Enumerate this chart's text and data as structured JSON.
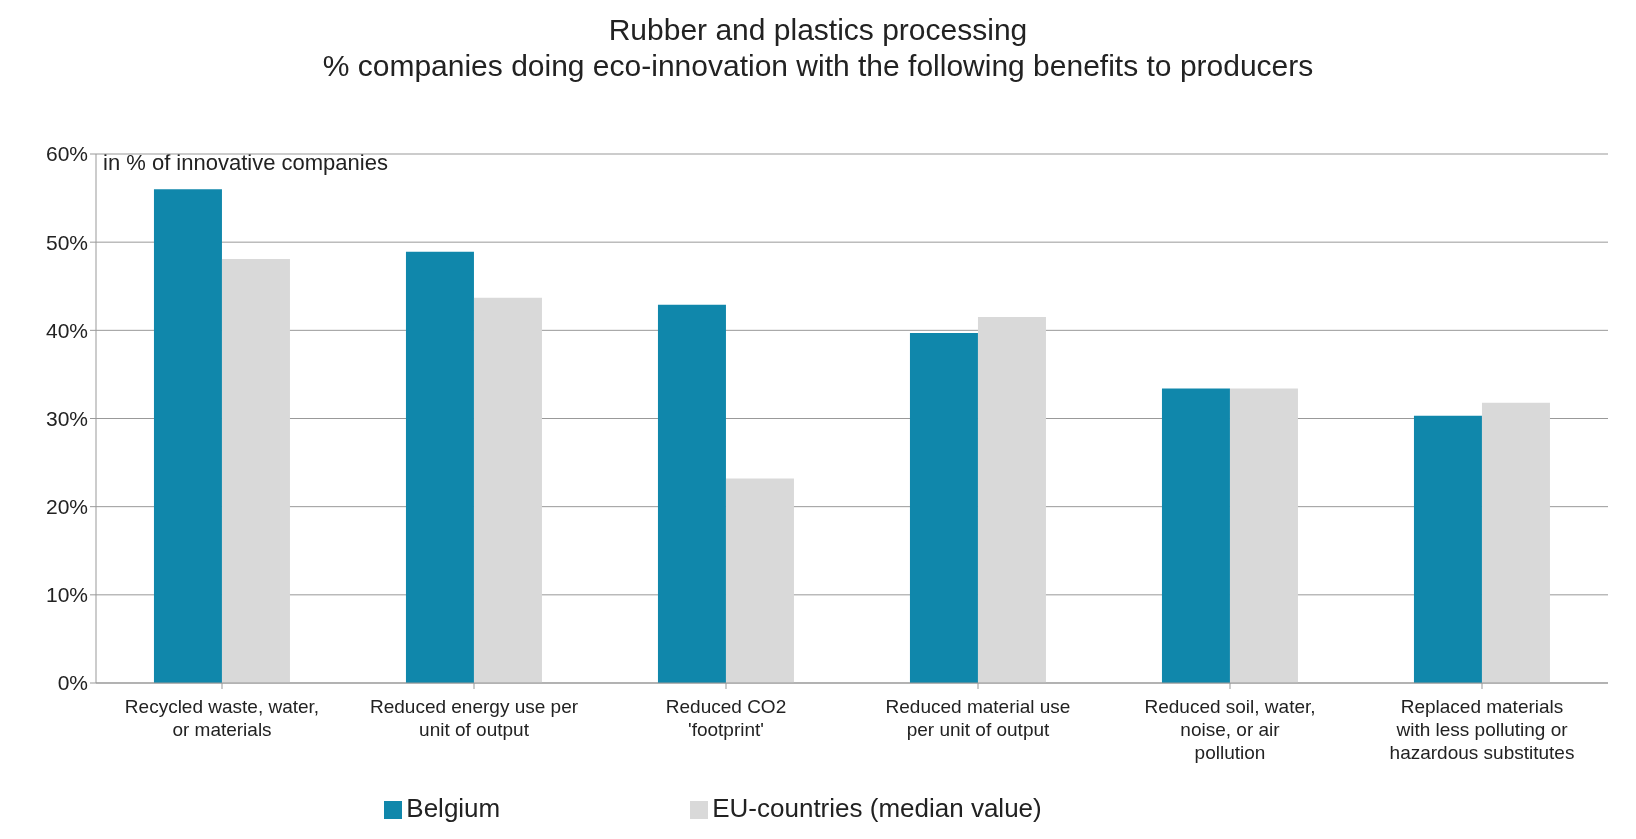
{
  "chart_data": {
    "type": "bar",
    "title": "Rubber and plastics processing",
    "subtitle": "% companies doing eco-innovation with the following benefits to producers",
    "ylabel": "in % of innovative companies",
    "categories": [
      "Recycled waste, water, or materials",
      "Reduced energy use per unit of output",
      "Reduced CO2 'footprint'",
      "Reduced material use per unit of output",
      "Reduced soil, water, noise, or air pollution",
      "Replaced materials with less polluting or hazardous substitutes"
    ],
    "series": [
      {
        "name": "Belgium",
        "color": "#1087ab",
        "values": [
          56.0,
          48.9,
          42.9,
          39.7,
          33.4,
          30.3
        ]
      },
      {
        "name": "EU-countries (median value)",
        "color": "#d9d9d9",
        "values": [
          48.1,
          43.7,
          23.2,
          41.5,
          33.4,
          31.8
        ]
      }
    ],
    "ylim": [
      0,
      60
    ],
    "yticks": [
      {
        "value": 0,
        "label": "0%"
      },
      {
        "value": 10,
        "label": "10%"
      },
      {
        "value": 20,
        "label": "20%"
      },
      {
        "value": 30,
        "label": "30%"
      },
      {
        "value": 40,
        "label": "40%"
      },
      {
        "value": 50,
        "label": "50%"
      },
      {
        "value": 60,
        "label": "60%"
      }
    ],
    "grid": "y",
    "legend": "bottom"
  }
}
